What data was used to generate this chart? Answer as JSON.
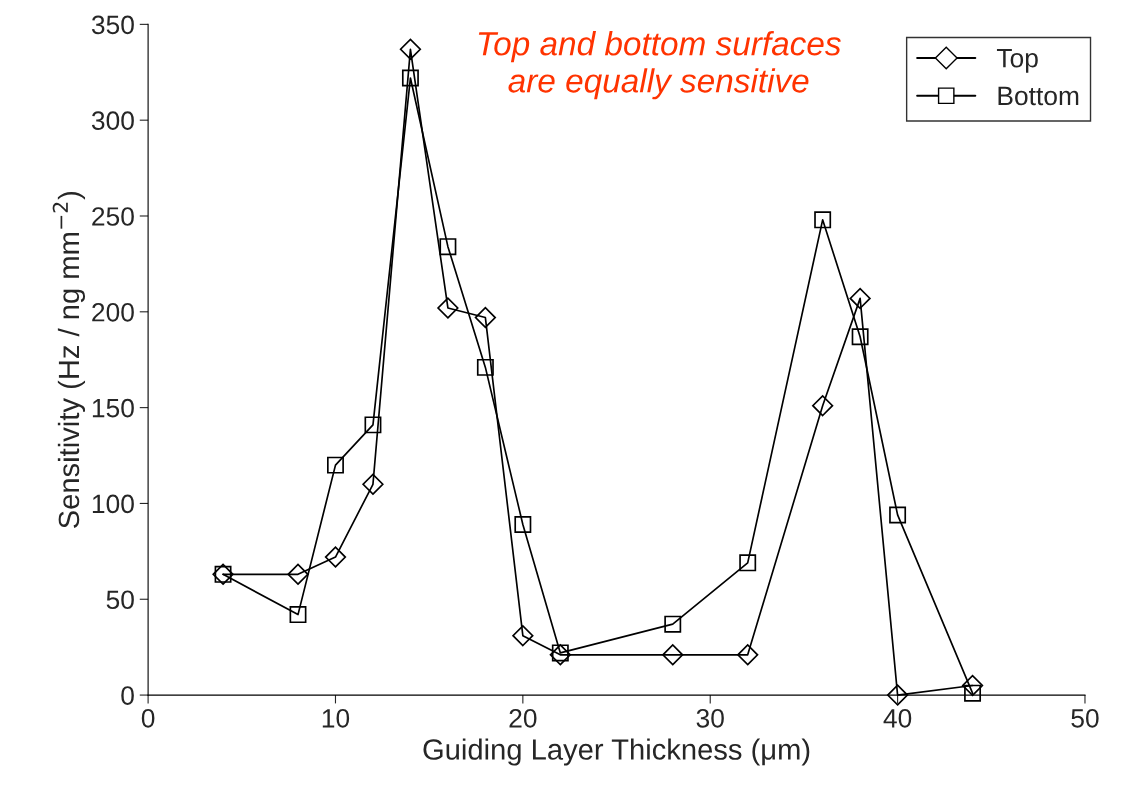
{
  "chart_data": {
    "type": "line",
    "xlabel": "Guiding Layer Thickness (μm)",
    "ylabel": "Sensitivity (Hz / ng mm$^{−2}$)",
    "annotations": [
      "Top and bottom surfaces are equally sensitive"
    ],
    "xlim": [
      0,
      50
    ],
    "xticks": [
      0,
      10,
      20,
      30,
      40,
      50
    ],
    "ylim": [
      0,
      350
    ],
    "yticks": [
      0,
      50,
      100,
      150,
      200,
      250,
      300,
      350
    ],
    "grid": false,
    "legend": "top right",
    "line_style": "solid",
    "series": [
      {
        "name": "Top",
        "color": "#000000",
        "marker": "diamond",
        "x": [
          4,
          8,
          10,
          12,
          14,
          16,
          18,
          20,
          22,
          28,
          32,
          36,
          38,
          40,
          44
        ],
        "values": [
          63,
          63,
          72,
          110,
          337,
          202,
          197,
          31,
          21,
          21,
          21,
          151,
          207,
          0,
          5
        ]
      },
      {
        "name": "Bottom",
        "color": "#000000",
        "marker": "square",
        "x": [
          4,
          8,
          10,
          12,
          14,
          16,
          18,
          20,
          22,
          28,
          32,
          36,
          38,
          40,
          44
        ],
        "values": [
          63,
          42,
          120,
          141,
          322,
          234,
          171,
          89,
          22,
          37,
          69,
          248,
          187,
          94,
          1
        ]
      }
    ]
  }
}
